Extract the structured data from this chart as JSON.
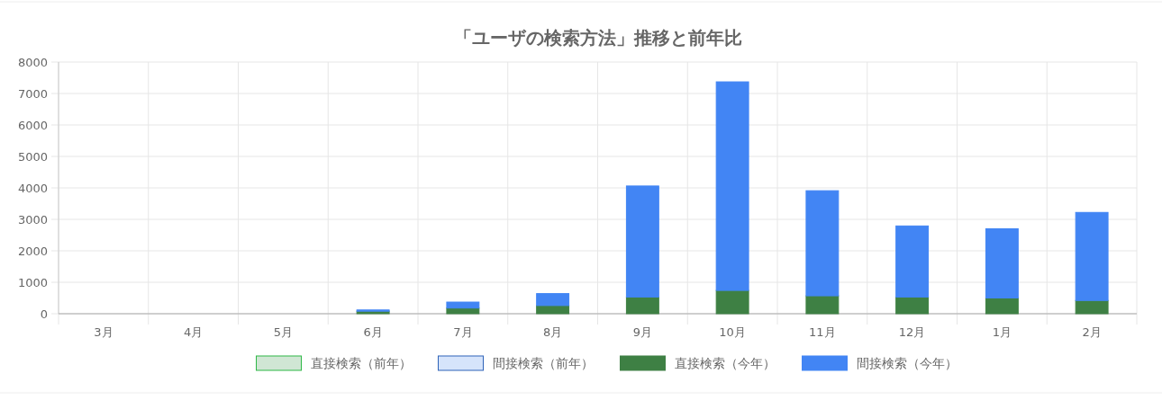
{
  "chart_data": {
    "type": "bar",
    "title": "「ユーザの検索方法」推移と前年比",
    "stacked": true,
    "categories": [
      "3月",
      "4月",
      "5月",
      "6月",
      "7月",
      "8月",
      "9月",
      "10月",
      "11月",
      "12月",
      "1月",
      "2月"
    ],
    "series": [
      {
        "name": "直接検索（前年）",
        "color": "#d0e6d4",
        "values": [
          0,
          0,
          0,
          0,
          0,
          0,
          0,
          0,
          0,
          0,
          0,
          0
        ]
      },
      {
        "name": "間接検索（前年）",
        "color": "#d6e4fb",
        "values": [
          0,
          0,
          0,
          0,
          0,
          0,
          0,
          0,
          0,
          0,
          0,
          0
        ]
      },
      {
        "name": "直接検索（今年）",
        "color": "#3e8044",
        "values": [
          0,
          0,
          0,
          80,
          180,
          260,
          530,
          740,
          570,
          530,
          500,
          420
        ]
      },
      {
        "name": "間接検索（今年）",
        "color": "#4285f4",
        "values": [
          0,
          0,
          0,
          40,
          190,
          380,
          3530,
          6630,
          3340,
          2260,
          2200,
          2800
        ]
      }
    ],
    "ylim": [
      0,
      8000
    ],
    "yticks": [
      0,
      1000,
      2000,
      3000,
      4000,
      5000,
      6000,
      7000,
      8000
    ],
    "grid": true,
    "legend": "bottom"
  }
}
